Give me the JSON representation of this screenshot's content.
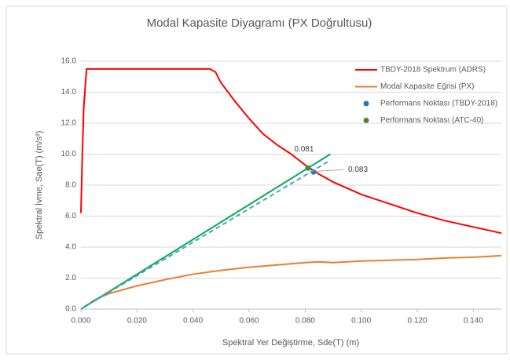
{
  "chart_data": {
    "type": "line",
    "title": "Modal Kapasite Diyagramı (PX Doğrultusu)",
    "x_label": "Spektral Yer Değiştirme, Sde(T) (m)",
    "y_label": "Spektral İvme, Sae(T) (m/s²)",
    "xlim": [
      0,
      0.15
    ],
    "ylim": [
      0,
      16
    ],
    "xticks": [
      {
        "value": 0,
        "label": "0.000"
      },
      {
        "value": 0.02,
        "label": "0.020"
      },
      {
        "value": 0.04,
        "label": "0.040"
      },
      {
        "value": 0.06,
        "label": "0.060"
      },
      {
        "value": 0.08,
        "label": "0.080"
      },
      {
        "value": 0.1,
        "label": "0.100"
      },
      {
        "value": 0.12,
        "label": "0.120"
      },
      {
        "value": 0.14,
        "label": "0.140"
      }
    ],
    "yticks": [
      {
        "value": 0,
        "label": "0.0"
      },
      {
        "value": 2,
        "label": "2.0"
      },
      {
        "value": 4,
        "label": "4.0"
      },
      {
        "value": 6,
        "label": "6.0"
      },
      {
        "value": 8,
        "label": "8.0"
      },
      {
        "value": 10,
        "label": "10.0"
      },
      {
        "value": 12,
        "label": "12.0"
      },
      {
        "value": 14,
        "label": "14.0"
      },
      {
        "value": 16,
        "label": "16.0"
      }
    ],
    "grid": true,
    "legend": "upper right",
    "series": [
      {
        "name": "TBDY-2018 Spektrum (ADRS)",
        "color": "#ff0000",
        "kind": "line",
        "x": [
          0,
          0.0005,
          0.001,
          0.002,
          0.046,
          0.048,
          0.05,
          0.055,
          0.06,
          0.065,
          0.07,
          0.075,
          0.08,
          0.085,
          0.09,
          0.1,
          0.11,
          0.12,
          0.13,
          0.14,
          0.15
        ],
        "values": [
          6.2,
          10,
          13,
          15.5,
          15.5,
          15.3,
          14.6,
          13.4,
          12.3,
          11.3,
          10.6,
          10.0,
          9.3,
          8.7,
          8.2,
          7.4,
          6.8,
          6.2,
          5.7,
          5.3,
          4.9
        ]
      },
      {
        "name": "Modal Kapasite Eğrisi (PX)",
        "color": "#ed7d31",
        "kind": "line",
        "x": [
          0,
          0.005,
          0.01,
          0.02,
          0.03,
          0.04,
          0.05,
          0.06,
          0.07,
          0.08,
          0.085,
          0.09,
          0.1,
          0.11,
          0.12,
          0.13,
          0.14,
          0.15
        ],
        "values": [
          0,
          0.6,
          1.0,
          1.5,
          1.9,
          2.25,
          2.5,
          2.7,
          2.85,
          3.0,
          3.05,
          3.0,
          3.1,
          3.15,
          3.2,
          3.3,
          3.35,
          3.45
        ]
      },
      {
        "name": "Performans Noktası (TBDY-2018)",
        "color": "#2e75b6",
        "kind": "point",
        "x": [
          0.083
        ],
        "values": [
          8.85
        ]
      },
      {
        "name": "Performans Noktası (ATC-40)",
        "color": "#548235",
        "kind": "point",
        "x": [
          0.081
        ],
        "values": [
          9.1
        ]
      },
      {
        "color": "#00b050",
        "kind": "line",
        "x": [
          0,
          0.089
        ],
        "values": [
          0,
          10.0
        ]
      },
      {
        "color": "#5b9bd5",
        "kind": "line",
        "dashed": true,
        "x": [
          0,
          0.088
        ],
        "values": [
          0,
          9.5
        ]
      }
    ],
    "annotations": [
      "0.081",
      "0.083"
    ]
  }
}
